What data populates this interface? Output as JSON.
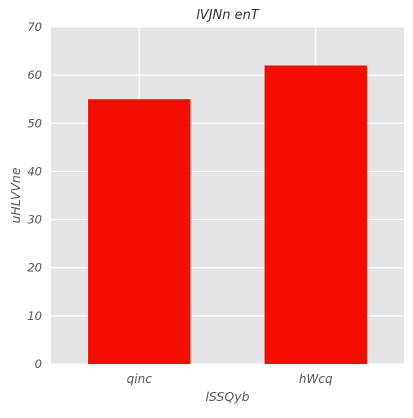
{
  "chart_data": {
    "type": "bar",
    "title": "lVJNn enT",
    "xlabel": "lSSQyb",
    "ylabel": "uHLVVne",
    "categories": [
      "qinc",
      "hWcq"
    ],
    "values": [
      55,
      62
    ],
    "ylim": [
      0,
      70
    ],
    "yticks": [
      0,
      10,
      20,
      30,
      40,
      50,
      60,
      70
    ],
    "grid": true,
    "legend": "none",
    "colors": {
      "bar": "#f20e00",
      "plot_background": "#e5e5e5",
      "grid": "#ffffff",
      "text": "#555555"
    }
  }
}
